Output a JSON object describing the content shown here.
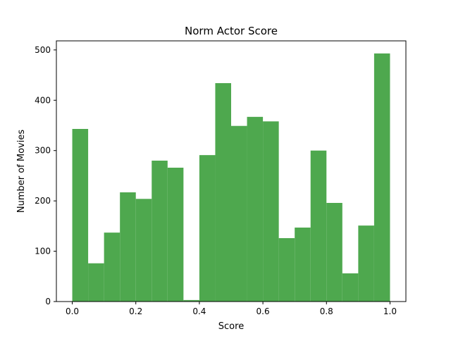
{
  "chart_data": {
    "type": "bar",
    "title": "Norm Actor Score",
    "xlabel": "Score",
    "ylabel": "Number of Movies",
    "bin_edges": [
      0.0,
      0.05,
      0.1,
      0.15,
      0.2,
      0.25,
      0.3,
      0.35,
      0.4,
      0.45,
      0.5,
      0.55,
      0.6,
      0.65,
      0.7,
      0.75,
      0.8,
      0.85,
      0.9,
      0.95,
      1.0
    ],
    "values": [
      343,
      76,
      137,
      217,
      204,
      280,
      266,
      3,
      291,
      434,
      349,
      367,
      358,
      126,
      147,
      300,
      196,
      56,
      151,
      493
    ],
    "xlim": [
      -0.05,
      1.05
    ],
    "ylim": [
      0,
      518
    ],
    "xticks": [
      0.0,
      0.2,
      0.4,
      0.6,
      0.8,
      1.0
    ],
    "xtick_labels": [
      "0.0",
      "0.2",
      "0.4",
      "0.6",
      "0.8",
      "1.0"
    ],
    "yticks": [
      0,
      100,
      200,
      300,
      400,
      500
    ],
    "ytick_labels": [
      "0",
      "100",
      "200",
      "300",
      "400",
      "500"
    ],
    "bar_color": "#4ea84e",
    "grid": false,
    "legend": false
  }
}
